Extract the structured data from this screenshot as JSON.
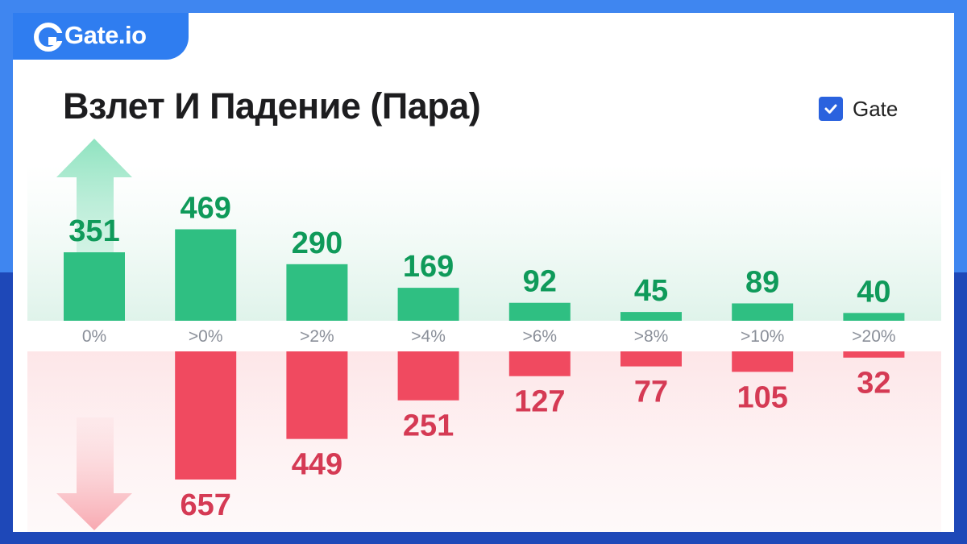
{
  "brand": {
    "name": "Gate.io"
  },
  "colors": {
    "rise": "#2fbf82",
    "rise_text": "#0f9a5a",
    "fall": "#f04a60",
    "fall_text": "#d53a54",
    "brand_blue": "#2f7df0",
    "axis_text": "#8a8f99"
  },
  "chart_data": {
    "type": "bar",
    "title": "Взлет И Падение (Пара)",
    "legend": {
      "label": "Gate",
      "checked": true,
      "placement": "top-right"
    },
    "categories": [
      "0%",
      ">0%",
      ">2%",
      ">4%",
      ">6%",
      ">8%",
      ">10%",
      ">20%"
    ],
    "series": [
      {
        "direction": "up",
        "values": [
          351,
          469,
          290,
          169,
          92,
          45,
          89,
          40
        ],
        "labels": [
          "351",
          "469",
          "290",
          "169",
          "92",
          "45",
          "89",
          "40"
        ]
      },
      {
        "direction": "down",
        "values": [
          0,
          657,
          449,
          251,
          127,
          77,
          105,
          32
        ],
        "labels": [
          "",
          "657",
          "449",
          "251",
          "127",
          "77",
          "105",
          "32"
        ]
      }
    ]
  }
}
